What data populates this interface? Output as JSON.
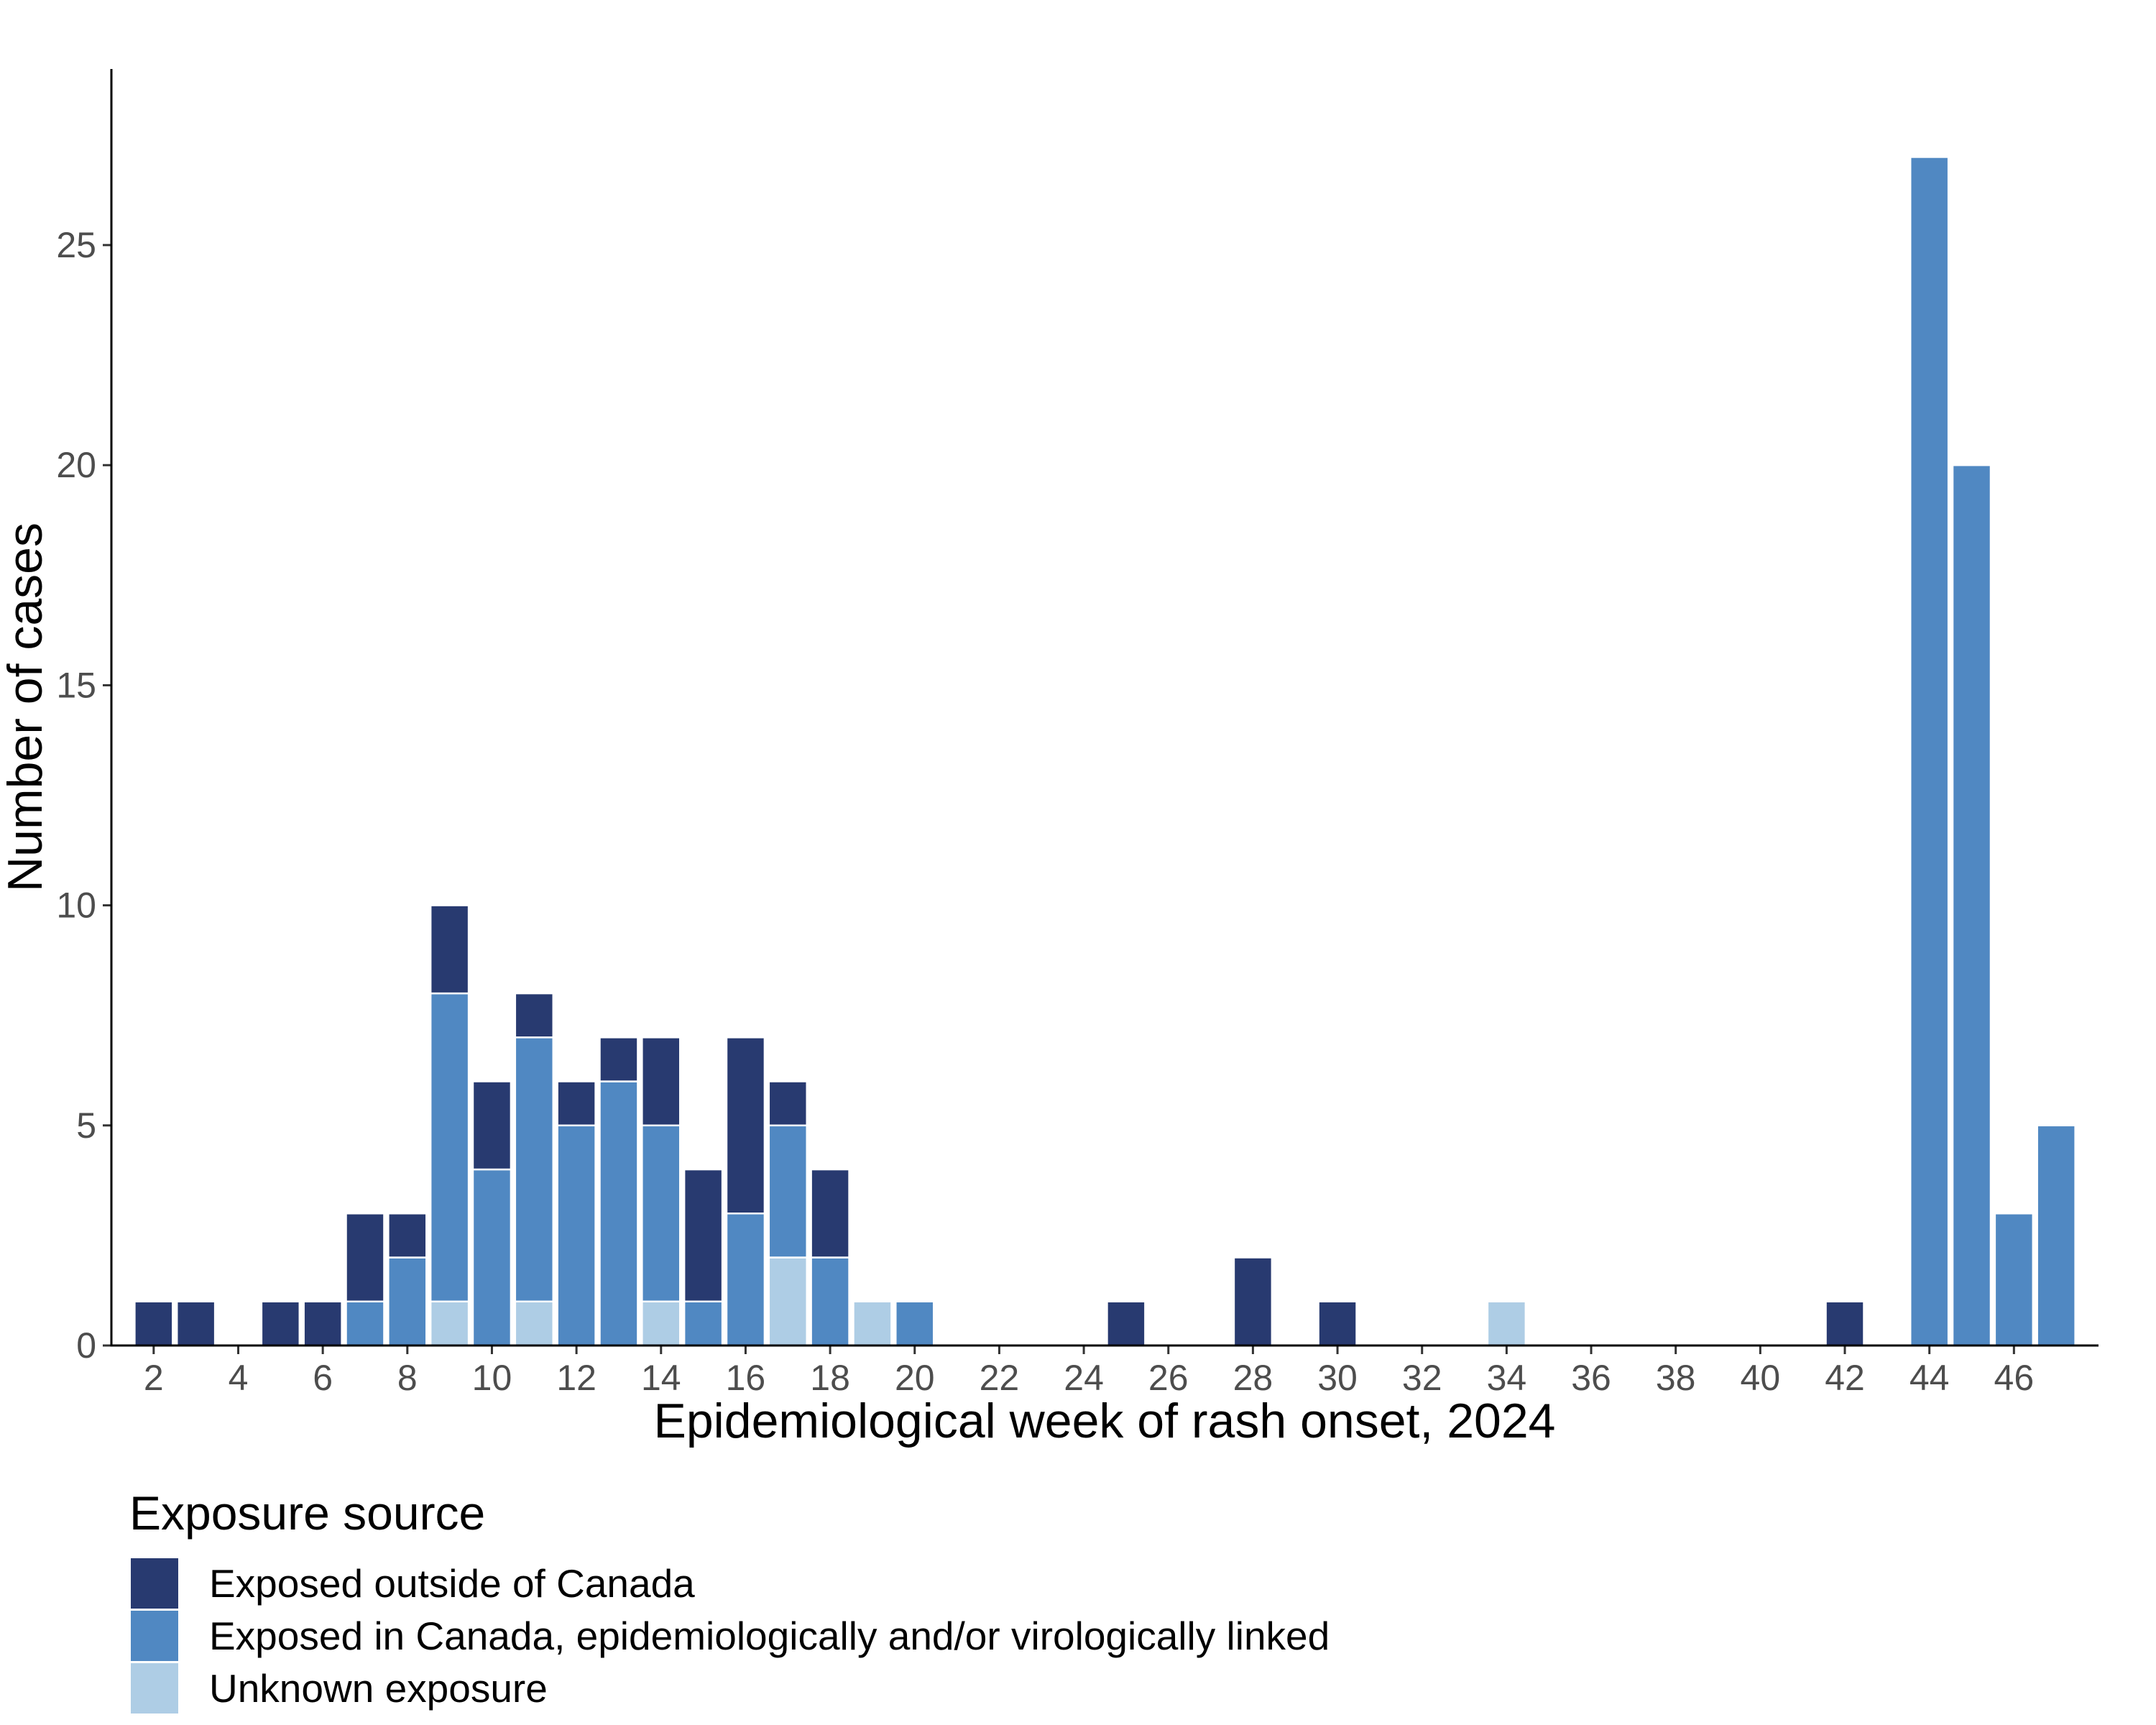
{
  "chart_data": {
    "type": "bar",
    "stacked": true,
    "xlabel": "Epidemiological week of rash onset, 2024",
    "ylabel": "Number of cases",
    "x": [
      2,
      3,
      4,
      5,
      6,
      7,
      8,
      9,
      10,
      11,
      12,
      13,
      14,
      15,
      16,
      17,
      18,
      19,
      20,
      21,
      22,
      23,
      24,
      25,
      26,
      27,
      28,
      29,
      30,
      31,
      32,
      33,
      34,
      35,
      36,
      37,
      38,
      39,
      40,
      41,
      42,
      43,
      44,
      45,
      46,
      47
    ],
    "xticks": [
      2,
      4,
      6,
      8,
      10,
      12,
      14,
      16,
      18,
      20,
      22,
      24,
      26,
      28,
      30,
      32,
      34,
      36,
      38,
      40,
      42,
      44,
      46
    ],
    "yticks": [
      0,
      5,
      10,
      15,
      20,
      25
    ],
    "xlim": [
      1,
      48
    ],
    "ylim": [
      0,
      29
    ],
    "grid": false,
    "legend": {
      "title": "Exposure source",
      "position": "bottom-left"
    },
    "series": [
      {
        "name": "Exposed outside of Canada",
        "color": "#283a70",
        "values": [
          1,
          1,
          0,
          1,
          1,
          2,
          1,
          2,
          2,
          1,
          1,
          1,
          2,
          3,
          4,
          1,
          2,
          0,
          0,
          0,
          0,
          0,
          0,
          1,
          0,
          0,
          2,
          0,
          1,
          0,
          0,
          0,
          0,
          0,
          0,
          0,
          0,
          0,
          0,
          0,
          1,
          0,
          0,
          0,
          0,
          0
        ]
      },
      {
        "name": "Exposed in Canada, epidemiologically and/or virologically linked",
        "color": "#5088c2",
        "values": [
          0,
          0,
          0,
          0,
          0,
          1,
          2,
          7,
          4,
          6,
          5,
          6,
          4,
          1,
          3,
          3,
          2,
          0,
          1,
          0,
          0,
          0,
          0,
          0,
          0,
          0,
          0,
          0,
          0,
          0,
          0,
          0,
          0,
          0,
          0,
          0,
          0,
          0,
          0,
          0,
          0,
          0,
          27,
          20,
          3,
          5
        ]
      },
      {
        "name": "Unknown exposure",
        "color": "#aecde5",
        "values": [
          0,
          0,
          0,
          0,
          0,
          0,
          0,
          1,
          0,
          1,
          0,
          0,
          1,
          0,
          0,
          2,
          0,
          1,
          0,
          0,
          0,
          0,
          0,
          0,
          0,
          0,
          0,
          0,
          0,
          0,
          0,
          0,
          1,
          0,
          0,
          0,
          0,
          0,
          0,
          0,
          0,
          0,
          0,
          0,
          0,
          0
        ]
      }
    ]
  }
}
